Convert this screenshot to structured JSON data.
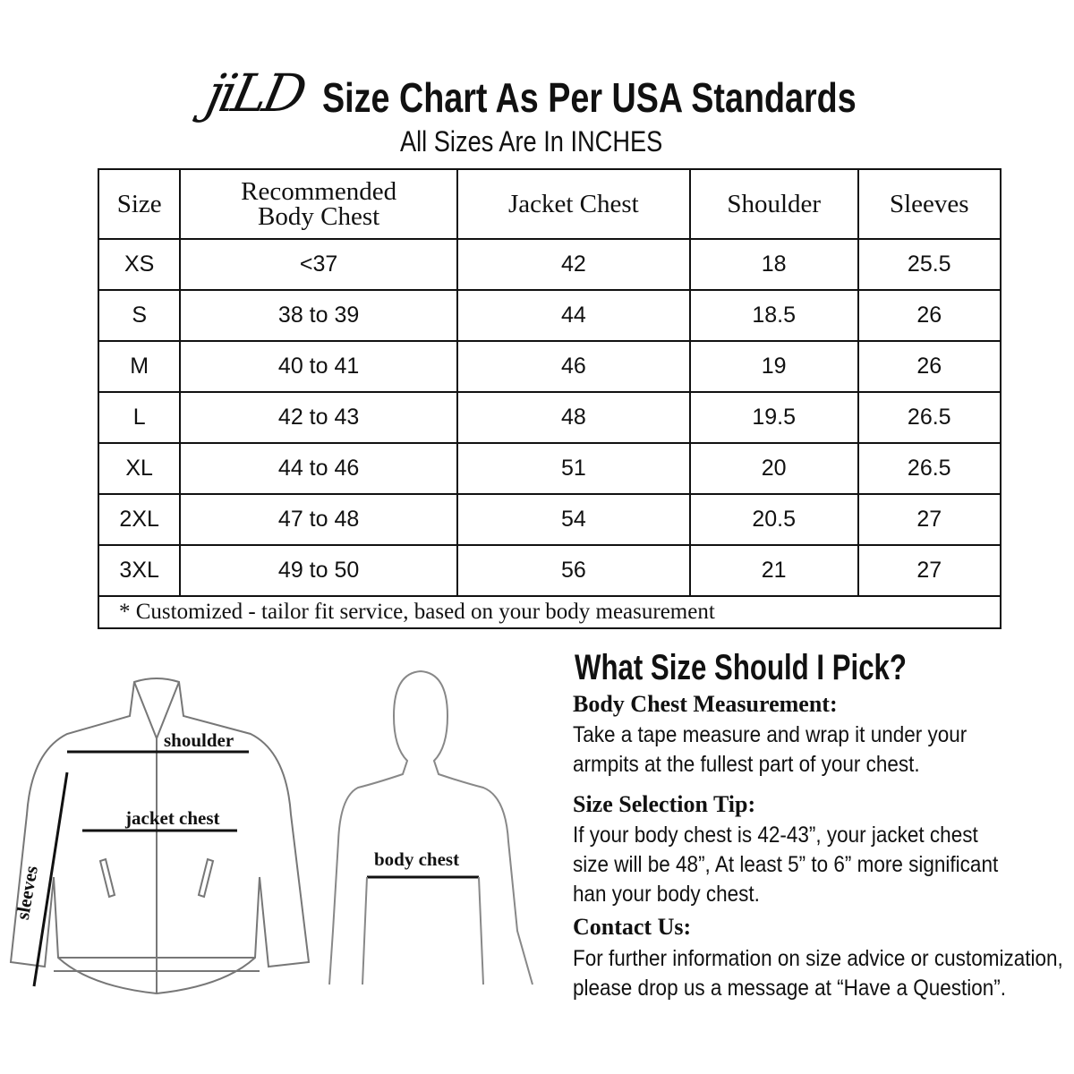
{
  "brand": {
    "logo": "jiLD"
  },
  "header": {
    "title": "Size Chart As Per USA Standards",
    "subtitle": "All Sizes Are In INCHES"
  },
  "table": {
    "columns": [
      "Size",
      "Recommended Body Chest",
      "Jacket Chest",
      "Shoulder",
      "Sleeves"
    ],
    "column_lines": [
      [
        "Size"
      ],
      [
        "Recommended",
        "Body Chest"
      ],
      [
        "Jacket Chest"
      ],
      [
        "Shoulder"
      ],
      [
        "Sleeves"
      ]
    ],
    "rows": [
      [
        "XS",
        "<37",
        "42",
        "18",
        "25.5"
      ],
      [
        "S",
        "38 to 39",
        "44",
        "18.5",
        "26"
      ],
      [
        "M",
        "40 to 41",
        "46",
        "19",
        "26"
      ],
      [
        "L",
        "42 to 43",
        "48",
        "19.5",
        "26.5"
      ],
      [
        "XL",
        "44 to 46",
        "51",
        "20",
        "26.5"
      ],
      [
        "2XL",
        "47 to 48",
        "54",
        "20.5",
        "27"
      ],
      [
        "3XL",
        "49 to 50",
        "56",
        "21",
        "27"
      ]
    ],
    "footnote": "* Customized - tailor fit service,  based on your body measurement"
  },
  "diagram": {
    "shoulder": "shoulder",
    "jacket_chest": "jacket chest",
    "sleeves": "sleeves",
    "body_chest": "body chest"
  },
  "guide": {
    "title": "What Size Should I Pick?",
    "sections": [
      {
        "heading": "Body Chest Measurement:",
        "lines": [
          "Take a tape measure and wrap it under your",
          "armpits at the fullest part of your chest."
        ]
      },
      {
        "heading": "Size Selection Tip:",
        "lines": [
          "If your body chest is 42-43”, your jacket chest",
          "size will be 48”, At least 5” to 6” more significant",
          "han your body chest."
        ]
      },
      {
        "heading": "Contact Us:",
        "lines": [
          "For further information on size advice or customization,",
          "please drop us a message at “Have a Question”."
        ]
      }
    ]
  }
}
